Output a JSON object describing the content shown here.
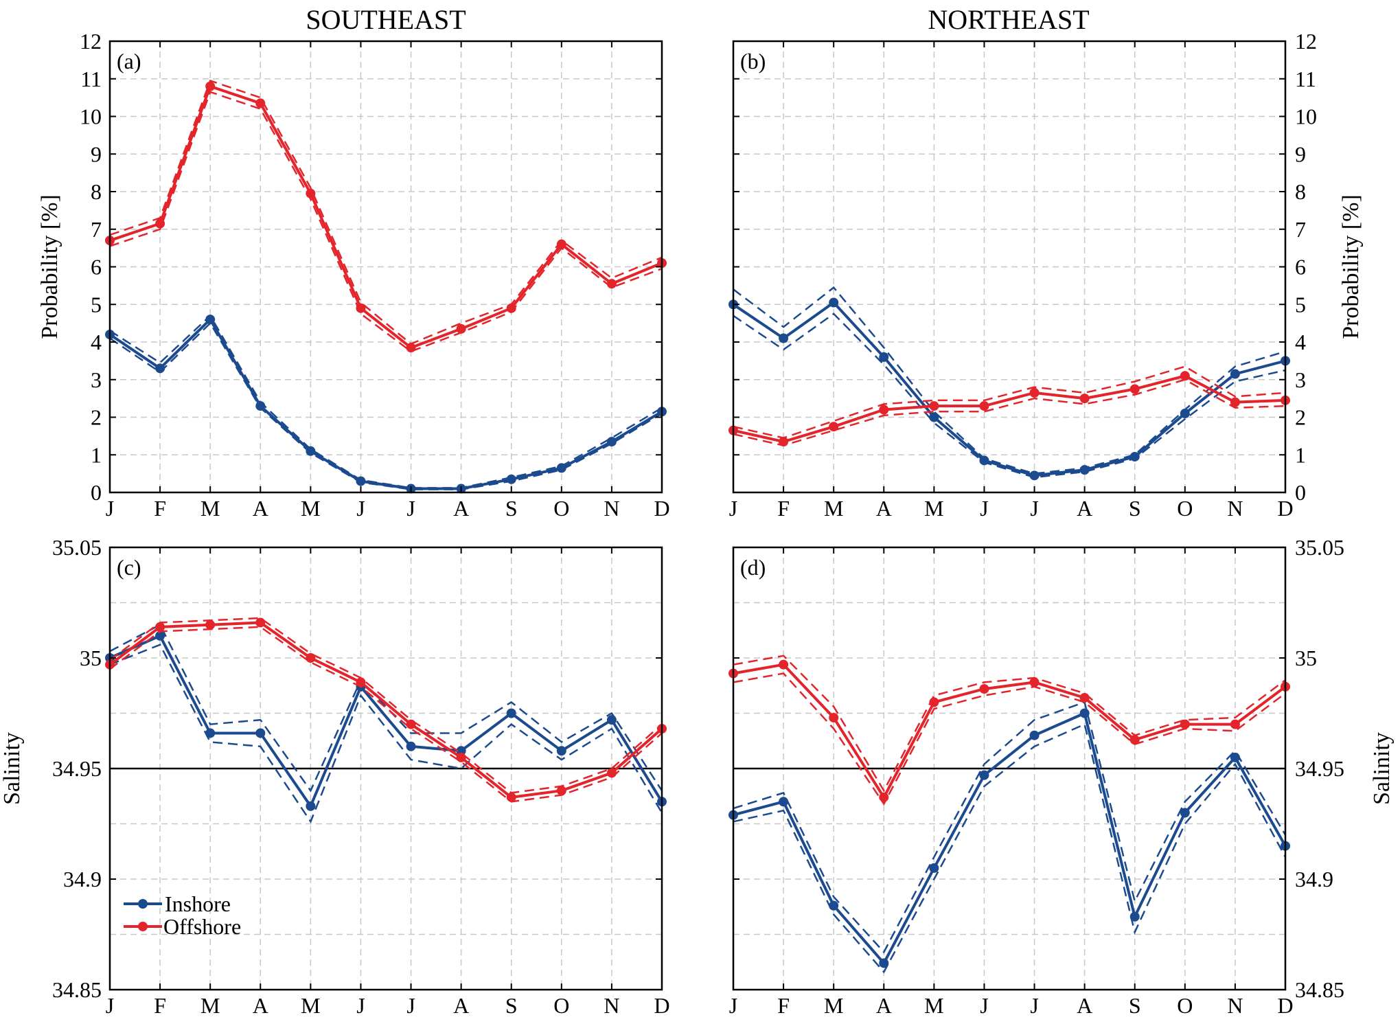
{
  "colors": {
    "inshore": "#1b4a8f",
    "offshore": "#e3242b",
    "grid": "#c8c8c8"
  },
  "titles": {
    "southeast": "SOUTHEAST",
    "northeast": "NORTHEAST"
  },
  "legend": {
    "inshore": "Inshore",
    "offshore": "Offshore"
  },
  "chart_data": [
    {
      "id": "a",
      "label": "(a)",
      "type": "line",
      "title": "SOUTHEAST",
      "ylabel": "Probability [%]",
      "yaxis_side": "left",
      "categories": [
        "J",
        "F",
        "M",
        "A",
        "M",
        "J",
        "J",
        "A",
        "S",
        "O",
        "N",
        "D"
      ],
      "ylim": [
        0,
        12
      ],
      "yticks": [
        0,
        1,
        2,
        3,
        4,
        5,
        6,
        7,
        8,
        9,
        10,
        11,
        12
      ],
      "ytick_labels": [
        "0",
        "1",
        "2",
        "3",
        "4",
        "5",
        "6",
        "7",
        "8",
        "9",
        "10",
        "11",
        "12"
      ],
      "series": [
        {
          "name": "Inshore",
          "values": [
            4.2,
            3.3,
            4.6,
            2.3,
            1.1,
            0.3,
            0.1,
            0.1,
            0.35,
            0.65,
            1.35,
            2.15
          ],
          "upper": [
            4.3,
            3.45,
            4.7,
            2.4,
            1.15,
            0.33,
            0.12,
            0.12,
            0.4,
            0.7,
            1.45,
            2.25
          ],
          "lower": [
            4.1,
            3.2,
            4.5,
            2.25,
            1.05,
            0.27,
            0.08,
            0.08,
            0.3,
            0.6,
            1.3,
            2.1
          ]
        },
        {
          "name": "Offshore",
          "values": [
            6.7,
            7.15,
            10.8,
            10.35,
            7.95,
            4.9,
            3.85,
            4.35,
            4.9,
            6.6,
            5.55,
            6.1
          ],
          "upper": [
            6.85,
            7.3,
            10.95,
            10.5,
            8.1,
            5.05,
            3.95,
            4.5,
            5.0,
            6.7,
            5.7,
            6.25
          ],
          "lower": [
            6.55,
            7.0,
            10.65,
            10.2,
            7.8,
            4.75,
            3.75,
            4.25,
            4.8,
            6.5,
            5.45,
            5.95
          ]
        }
      ]
    },
    {
      "id": "b",
      "label": "(b)",
      "type": "line",
      "title": "NORTHEAST",
      "ylabel": "Probability [%]",
      "yaxis_side": "right",
      "categories": [
        "J",
        "F",
        "M",
        "A",
        "M",
        "J",
        "J",
        "A",
        "S",
        "O",
        "N",
        "D"
      ],
      "ylim": [
        0,
        12
      ],
      "yticks": [
        0,
        1,
        2,
        3,
        4,
        5,
        6,
        7,
        8,
        9,
        10,
        11,
        12
      ],
      "ytick_labels": [
        "0",
        "1",
        "2",
        "3",
        "4",
        "5",
        "6",
        "7",
        "8",
        "9",
        "10",
        "11",
        "12"
      ],
      "series": [
        {
          "name": "Inshore",
          "values": [
            5.0,
            4.1,
            5.05,
            3.6,
            2.0,
            0.85,
            0.45,
            0.6,
            0.95,
            2.1,
            3.15,
            3.5
          ],
          "upper": [
            5.4,
            4.4,
            5.45,
            3.85,
            2.15,
            0.9,
            0.5,
            0.65,
            1.0,
            2.2,
            3.35,
            3.75
          ],
          "lower": [
            4.7,
            3.8,
            4.75,
            3.4,
            1.85,
            0.8,
            0.4,
            0.55,
            0.9,
            1.95,
            2.95,
            3.25
          ]
        },
        {
          "name": "Offshore",
          "values": [
            1.65,
            1.35,
            1.75,
            2.2,
            2.3,
            2.3,
            2.65,
            2.5,
            2.75,
            3.1,
            2.4,
            2.45
          ],
          "upper": [
            1.75,
            1.45,
            1.9,
            2.35,
            2.45,
            2.45,
            2.8,
            2.65,
            2.95,
            3.35,
            2.55,
            2.65
          ],
          "lower": [
            1.55,
            1.25,
            1.65,
            2.05,
            2.15,
            2.15,
            2.5,
            2.35,
            2.6,
            3.0,
            2.25,
            2.3
          ]
        }
      ]
    },
    {
      "id": "c",
      "label": "(c)",
      "type": "line",
      "title": "",
      "ylabel": "Salinity",
      "yaxis_side": "left",
      "categories": [
        "J",
        "F",
        "M",
        "A",
        "M",
        "J",
        "J",
        "A",
        "S",
        "O",
        "N",
        "D"
      ],
      "ylim": [
        34.85,
        35.05
      ],
      "yticks": [
        34.85,
        34.9,
        34.95,
        35.0,
        35.05
      ],
      "ytick_labels": [
        "34.85",
        "34.9",
        "34.95",
        "35",
        "35.05"
      ],
      "reference_line": 34.95,
      "series": [
        {
          "name": "Inshore",
          "values": [
            35.0,
            35.01,
            34.966,
            34.966,
            34.933,
            34.987,
            34.96,
            34.958,
            34.975,
            34.958,
            34.972,
            34.935
          ],
          "upper": [
            35.003,
            35.015,
            34.97,
            34.972,
            34.94,
            34.99,
            34.966,
            34.966,
            34.98,
            34.962,
            34.975,
            34.94
          ],
          "lower": [
            34.997,
            35.006,
            34.962,
            34.96,
            34.926,
            34.983,
            34.954,
            34.95,
            34.97,
            34.954,
            34.968,
            34.93
          ]
        },
        {
          "name": "Offshore",
          "values": [
            34.997,
            35.014,
            35.015,
            35.016,
            35.0,
            34.989,
            34.97,
            34.955,
            34.937,
            34.94,
            34.948,
            34.968
          ],
          "upper": [
            34.999,
            35.016,
            35.017,
            35.018,
            35.002,
            34.991,
            34.972,
            34.957,
            34.939,
            34.942,
            34.95,
            34.97
          ],
          "lower": [
            34.995,
            35.012,
            35.013,
            35.014,
            34.998,
            34.987,
            34.968,
            34.953,
            34.935,
            34.938,
            34.946,
            34.966
          ]
        }
      ]
    },
    {
      "id": "d",
      "label": "(d)",
      "type": "line",
      "title": "",
      "ylabel": "Salinity",
      "yaxis_side": "right",
      "categories": [
        "J",
        "F",
        "M",
        "A",
        "M",
        "J",
        "J",
        "A",
        "S",
        "O",
        "N",
        "D"
      ],
      "ylim": [
        34.85,
        35.05
      ],
      "yticks": [
        34.85,
        34.9,
        34.95,
        35.0,
        35.05
      ],
      "ytick_labels": [
        "34.85",
        "34.9",
        "34.95",
        "35",
        "35.05"
      ],
      "reference_line": 34.95,
      "series": [
        {
          "name": "Inshore",
          "values": [
            34.929,
            34.935,
            34.888,
            34.862,
            34.905,
            34.947,
            34.965,
            34.975,
            34.883,
            34.93,
            34.955,
            34.915
          ],
          "upper": [
            34.932,
            34.939,
            34.892,
            34.867,
            34.91,
            34.952,
            34.972,
            34.98,
            34.89,
            34.935,
            34.958,
            34.92
          ],
          "lower": [
            34.926,
            34.931,
            34.884,
            34.858,
            34.9,
            34.942,
            34.96,
            34.97,
            34.876,
            34.925,
            34.952,
            34.91
          ]
        },
        {
          "name": "Offshore",
          "values": [
            34.993,
            34.997,
            34.973,
            34.937,
            34.98,
            34.986,
            34.989,
            34.982,
            34.963,
            34.97,
            34.97,
            34.987
          ],
          "upper": [
            34.997,
            35.001,
            34.978,
            34.94,
            34.983,
            34.989,
            34.991,
            34.984,
            34.965,
            34.972,
            34.973,
            34.99
          ],
          "lower": [
            34.989,
            34.993,
            34.968,
            34.934,
            34.977,
            34.983,
            34.987,
            34.98,
            34.961,
            34.968,
            34.967,
            34.984
          ]
        }
      ]
    }
  ]
}
